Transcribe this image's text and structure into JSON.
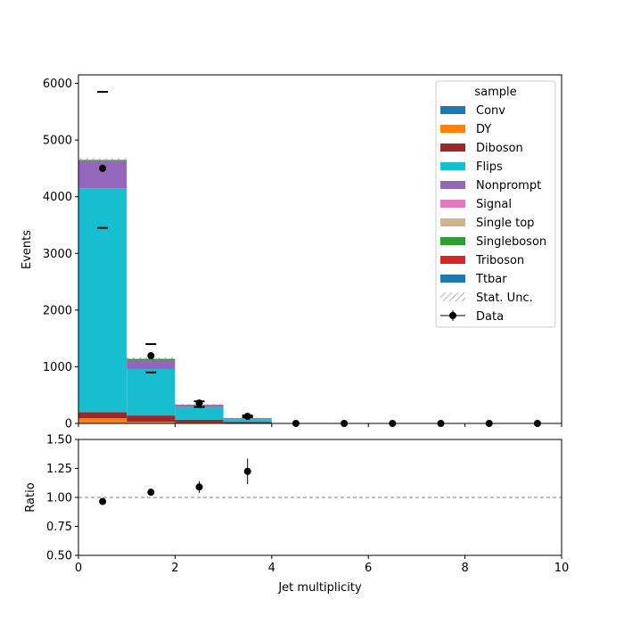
{
  "chart_data": [
    {
      "type": "bar",
      "stacked": true,
      "title": "",
      "xlabel": "",
      "ylabel": "Events",
      "xlim": [
        0,
        10
      ],
      "ylim": [
        0,
        6150
      ],
      "bin_edges": [
        0,
        1,
        2,
        3,
        4,
        5,
        6,
        7,
        8,
        9,
        10
      ],
      "y_ticks": [
        0,
        1000,
        2000,
        3000,
        4000,
        5000,
        6000
      ],
      "y_tick_labels": [
        "0",
        "1000",
        "2000",
        "3000",
        "4000",
        "5000",
        "6000"
      ],
      "grid": false,
      "legend": {
        "title": "sample",
        "placement": "top-right",
        "entries": [
          {
            "label": "Conv",
            "color": "#1f77b4",
            "kind": "patch"
          },
          {
            "label": "DY",
            "color": "#ff7f0e",
            "kind": "patch"
          },
          {
            "label": "Diboson",
            "color": "#9a2a2a",
            "kind": "patch"
          },
          {
            "label": "Flips",
            "color": "#17becf",
            "kind": "patch"
          },
          {
            "label": "Nonprompt",
            "color": "#9467bd",
            "kind": "patch"
          },
          {
            "label": "Signal",
            "color": "#e377c2",
            "kind": "patch"
          },
          {
            "label": "Single top",
            "color": "#d2b48c",
            "kind": "patch"
          },
          {
            "label": "Singleboson",
            "color": "#2ca02c",
            "kind": "patch"
          },
          {
            "label": "Triboson",
            "color": "#d62728",
            "kind": "patch"
          },
          {
            "label": "Ttbar",
            "color": "#1f77b4",
            "kind": "patch"
          },
          {
            "label": "Stat. Unc.",
            "color": "#888888",
            "kind": "hatch"
          },
          {
            "label": "Data",
            "color": "#000000",
            "kind": "errorbar"
          }
        ]
      },
      "series": [
        {
          "name": "Conv",
          "color": "#1f77b4",
          "values": [
            10,
            5,
            2,
            1,
            0,
            0,
            0,
            0,
            0,
            0
          ]
        },
        {
          "name": "DY",
          "color": "#ff7f0e",
          "values": [
            80,
            25,
            10,
            3,
            0,
            0,
            0,
            0,
            0,
            0
          ]
        },
        {
          "name": "Diboson",
          "color": "#9a2a2a",
          "values": [
            110,
            110,
            55,
            20,
            0,
            0,
            0,
            0,
            0,
            0
          ]
        },
        {
          "name": "Flips",
          "color": "#17becf",
          "values": [
            3950,
            820,
            220,
            50,
            0,
            0,
            0,
            0,
            0,
            0
          ]
        },
        {
          "name": "Nonprompt",
          "color": "#9467bd",
          "values": [
            480,
            150,
            40,
            18,
            0,
            0,
            0,
            0,
            0,
            0
          ]
        },
        {
          "name": "Signal",
          "color": "#e377c2",
          "values": [
            0,
            0,
            0,
            0,
            0,
            0,
            0,
            0,
            0,
            0
          ]
        },
        {
          "name": "Single top",
          "color": "#d2b48c",
          "values": [
            0,
            0,
            0,
            0,
            0,
            0,
            0,
            0,
            0,
            0
          ]
        },
        {
          "name": "Singleboson",
          "color": "#2ca02c",
          "values": [
            20,
            30,
            5,
            3,
            0,
            0,
            0,
            0,
            0,
            0
          ]
        },
        {
          "name": "Triboson",
          "color": "#d62728",
          "values": [
            0,
            0,
            0,
            0,
            0,
            0,
            0,
            0,
            0,
            0
          ]
        },
        {
          "name": "Ttbar",
          "color": "#1f77b4",
          "values": [
            0,
            0,
            0,
            0,
            0,
            0,
            0,
            0,
            0,
            0
          ]
        }
      ],
      "stat_unc": [
        30,
        25,
        10,
        5,
        0,
        0,
        0,
        0,
        0,
        0
      ],
      "data": {
        "name": "Data",
        "x": [
          0.5,
          1.5,
          2.5,
          3.5,
          4.5,
          5.5,
          6.5,
          7.5,
          8.5,
          9.5
        ],
        "y": [
          4500,
          1195,
          360,
          125,
          0,
          0,
          0,
          0,
          0,
          0
        ],
        "yerr": [
          67,
          35,
          19,
          11,
          0,
          0,
          0,
          0,
          0,
          0
        ]
      },
      "syst_markers": {
        "x": [
          0.5,
          0.5,
          1.5,
          1.5,
          2.5,
          2.5,
          3.5,
          3.5
        ],
        "y": [
          5850,
          3450,
          1400,
          900,
          390,
          290,
          140,
          110
        ]
      }
    },
    {
      "type": "scatter",
      "title": "",
      "xlabel": "Jet multiplicity",
      "ylabel": "Ratio",
      "xlim": [
        0,
        10
      ],
      "ylim": [
        0.5,
        1.5
      ],
      "x_ticks": [
        0,
        2,
        4,
        6,
        8,
        10
      ],
      "x_tick_labels": [
        "0",
        "2",
        "4",
        "6",
        "8",
        "10"
      ],
      "y_ticks": [
        0.5,
        0.75,
        1.0,
        1.25,
        1.5
      ],
      "y_tick_labels": [
        "0.50",
        "0.75",
        "1.00",
        "1.25",
        "1.50"
      ],
      "grid": false,
      "reference_line": 1.0,
      "points": {
        "x": [
          0.5,
          1.5,
          2.5,
          3.5
        ],
        "y": [
          0.965,
          1.045,
          1.09,
          1.225
        ],
        "yerr": [
          0.015,
          0.025,
          0.05,
          0.11
        ]
      }
    }
  ]
}
